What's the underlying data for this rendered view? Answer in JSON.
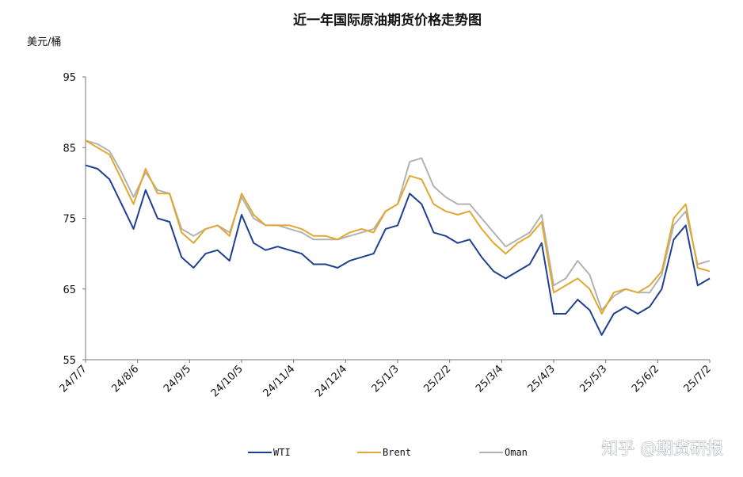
{
  "chart_data": {
    "type": "line",
    "title": "近一年国际原油期货价格走势图",
    "ylabel": "美元/桶",
    "xlabel": "",
    "ylim": [
      55,
      95
    ],
    "yticks": [
      55,
      65,
      75,
      85,
      95
    ],
    "x_tick_labels": [
      "24/7/7",
      "24/8/6",
      "24/9/5",
      "24/10/5",
      "24/11/4",
      "24/12/4",
      "25/1/3",
      "25/2/2",
      "25/3/4",
      "25/4/3",
      "25/5/3",
      "25/6/2",
      "25/7/2"
    ],
    "grid": false,
    "legend_position": "bottom",
    "x": [
      "24/7/7",
      "24/7/14",
      "24/7/21",
      "24/7/28",
      "24/8/4",
      "24/8/11",
      "24/8/18",
      "24/8/25",
      "24/9/1",
      "24/9/8",
      "24/9/15",
      "24/9/22",
      "24/9/29",
      "24/10/6",
      "24/10/13",
      "24/10/20",
      "24/10/27",
      "24/11/3",
      "24/11/10",
      "24/11/17",
      "24/11/24",
      "24/12/1",
      "24/12/8",
      "24/12/15",
      "24/12/22",
      "24/12/29",
      "25/1/5",
      "25/1/12",
      "25/1/19",
      "25/1/26",
      "25/2/2",
      "25/2/9",
      "25/2/16",
      "25/2/23",
      "25/3/2",
      "25/3/9",
      "25/3/16",
      "25/3/23",
      "25/3/30",
      "25/4/6",
      "25/4/13",
      "25/4/20",
      "25/4/27",
      "25/5/4",
      "25/5/11",
      "25/5/18",
      "25/5/25",
      "25/6/1",
      "25/6/8",
      "25/6/15",
      "25/6/22",
      "25/6/29",
      "25/7/2"
    ],
    "series": [
      {
        "name": "WTI",
        "color": "#1f3f8f",
        "values": [
          82.5,
          82.0,
          80.5,
          77.0,
          73.5,
          79.0,
          75.0,
          74.5,
          69.5,
          68.0,
          70.0,
          70.5,
          69.0,
          75.5,
          71.5,
          70.5,
          71.0,
          70.5,
          70.0,
          68.5,
          68.5,
          68.0,
          69.0,
          69.5,
          70.0,
          73.5,
          74.0,
          78.5,
          77.0,
          73.0,
          72.5,
          71.5,
          72.0,
          69.5,
          67.5,
          66.5,
          67.5,
          68.5,
          71.5,
          61.5,
          61.5,
          63.5,
          62.0,
          58.5,
          61.5,
          62.5,
          61.5,
          62.5,
          65.0,
          72.0,
          74.0,
          65.5,
          66.5
        ]
      },
      {
        "name": "Brent",
        "color": "#e0a82e",
        "values": [
          86.0,
          85.0,
          84.0,
          80.5,
          77.0,
          82.0,
          78.5,
          78.5,
          73.0,
          71.5,
          73.5,
          74.0,
          72.5,
          78.5,
          75.5,
          74.0,
          74.0,
          74.0,
          73.5,
          72.5,
          72.5,
          72.0,
          73.0,
          73.5,
          73.0,
          76.0,
          77.0,
          81.0,
          80.5,
          77.0,
          76.0,
          75.5,
          76.0,
          73.5,
          71.5,
          70.0,
          71.5,
          72.5,
          74.5,
          64.5,
          65.5,
          66.5,
          65.0,
          61.5,
          64.5,
          65.0,
          64.5,
          65.5,
          67.5,
          75.0,
          77.0,
          68.0,
          67.5
        ]
      },
      {
        "name": "Oman",
        "color": "#b2b2b2",
        "values": [
          86.0,
          85.5,
          84.5,
          81.5,
          78.0,
          81.5,
          79.0,
          78.5,
          73.5,
          72.5,
          73.5,
          74.0,
          73.0,
          78.0,
          75.0,
          74.0,
          74.0,
          73.5,
          73.0,
          72.0,
          72.0,
          72.0,
          72.5,
          73.0,
          73.5,
          76.0,
          77.0,
          83.0,
          83.5,
          79.5,
          78.0,
          77.0,
          77.0,
          75.0,
          73.0,
          71.0,
          72.0,
          73.0,
          75.5,
          65.5,
          66.5,
          69.0,
          67.0,
          62.0,
          64.0,
          65.0,
          64.5,
          64.5,
          67.0,
          74.0,
          76.0,
          68.5,
          69.0
        ]
      }
    ]
  },
  "watermark": "知乎 @期货研报"
}
